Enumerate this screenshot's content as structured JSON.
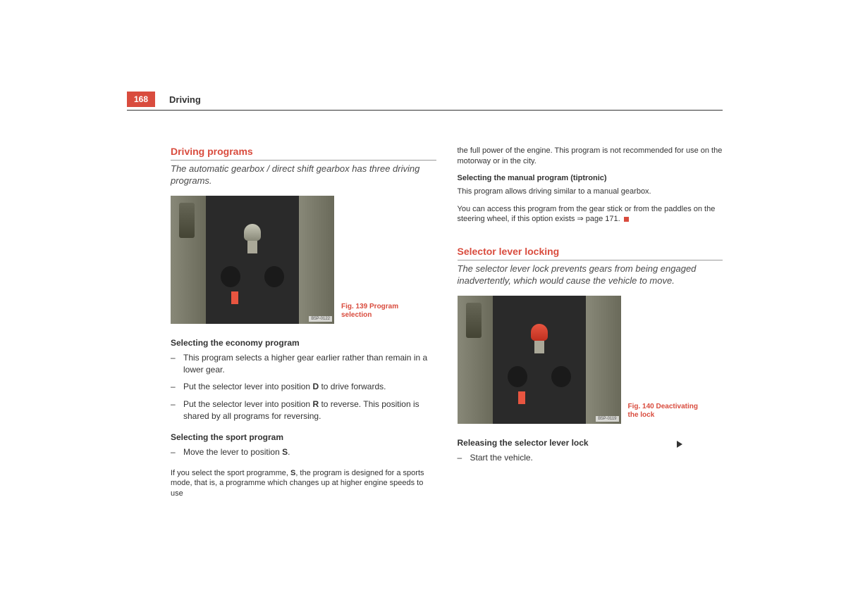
{
  "page": {
    "number": "168",
    "header": "Driving"
  },
  "left": {
    "section_title": "Driving programs",
    "subtitle": "The automatic gearbox / direct shift gearbox has three driving programs.",
    "fig139": {
      "caption": "Fig. 139   Program selection",
      "ref": "B5P-0122"
    },
    "economy_heading": "Selecting the economy program",
    "economy_items": [
      "This program selects a higher gear earlier rather than remain in a lower gear.",
      "Put the selector lever into position ",
      "D",
      " to drive forwards.",
      "Put the selector lever into position ",
      "R",
      " to reverse. This position is shared by all programs for reversing."
    ],
    "sport_heading": "Selecting the sport program",
    "sport_item_prefix": "Move the lever to position ",
    "sport_letter": "S",
    "sport_item_suffix": ".",
    "sport_para_prefix": "If you select the sport programme, ",
    "sport_para_letter": "S",
    "sport_para_suffix": ", the program is designed for a sports mode, that is, a programme which changes up at higher engine speeds to use"
  },
  "right": {
    "top_para": "the full power of the engine. This program is not recommended for use on the motorway or in the city.",
    "manual_heading": "Selecting the manual program (tiptronic)",
    "manual_para1": "This program allows driving similar to a manual gearbox.",
    "manual_para2": "You can access this program from the gear stick or from the paddles on the steering wheel, if this option exists ⇒ page 171.",
    "section_title": "Selector lever locking",
    "subtitle": "The selector lever lock prevents gears from being engaged inadvertently, which would cause the vehicle to move.",
    "fig140": {
      "caption": "Fig. 140   Deactivating the lock",
      "ref": "B5P-0119"
    },
    "release_heading": "Releasing the selector lever lock",
    "release_item": "Start the vehicle."
  }
}
